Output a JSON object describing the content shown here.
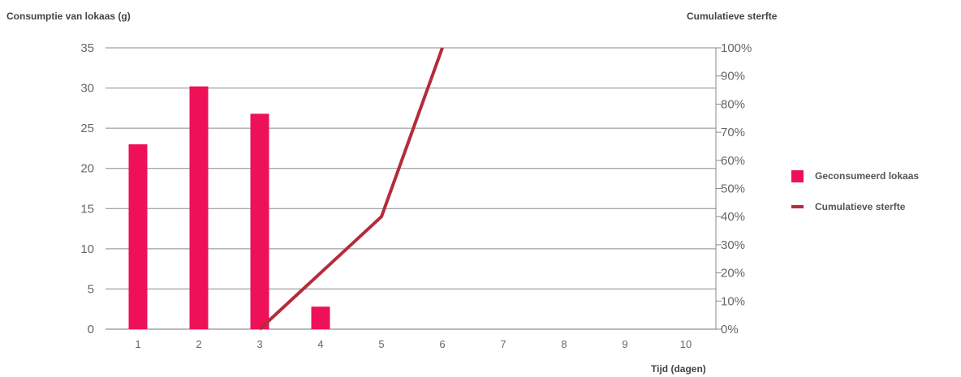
{
  "chart_data": {
    "type": "bar",
    "title": "",
    "ylabel": "Consumptie van lokaas (g)",
    "y2label": "Cumulatieve sterfte",
    "xlabel": "Tijd (dagen)",
    "categories": [
      "1",
      "2",
      "3",
      "4",
      "5",
      "6",
      "7",
      "8",
      "9",
      "10"
    ],
    "ylim": [
      0,
      35
    ],
    "yticks": [
      "0",
      "5",
      "10",
      "15",
      "20",
      "25",
      "30",
      "35"
    ],
    "y2lim": [
      0,
      100
    ],
    "y2ticks": [
      "0%",
      "10%",
      "20%",
      "30%",
      "40%",
      "50%",
      "60%",
      "70%",
      "80%",
      "90%",
      "100%"
    ],
    "grid": true,
    "legend_position": "right",
    "series": [
      {
        "name": "Geconsumeerd lokaas",
        "type": "bar",
        "axis": "left",
        "color": "#ee1157",
        "values": [
          23,
          30.2,
          26.8,
          2.8,
          null,
          null,
          null,
          null,
          null,
          null
        ]
      },
      {
        "name": "Cumulatieve sterfte",
        "type": "line",
        "axis": "right",
        "color": "#b42c3c",
        "x": [
          3,
          5,
          6
        ],
        "values": [
          0,
          40,
          100
        ]
      }
    ]
  }
}
